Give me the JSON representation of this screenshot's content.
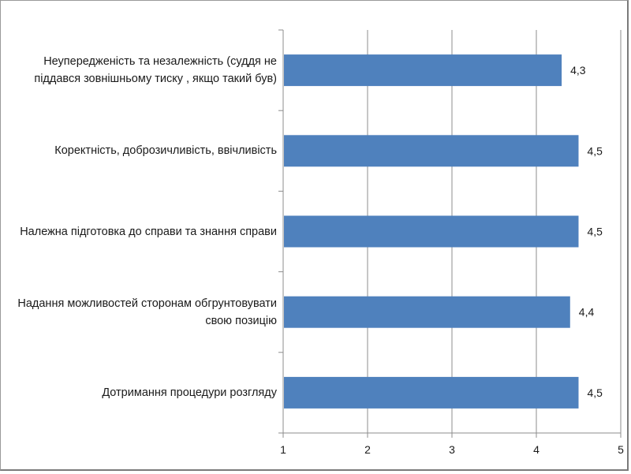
{
  "chart_data": {
    "type": "bar",
    "orientation": "horizontal",
    "categories": [
      "Неупередженість та незалежність (суддя не піддався зовнішньому тиску , якщо такий був)",
      "Коректність, доброзичливість, ввічливість",
      "Належна підготовка до справи та знання справи",
      "Надання можливостей сторонам обгрунтовувати свою позицію",
      "Дотримання процедури розгляду"
    ],
    "values": [
      4.3,
      4.5,
      4.5,
      4.4,
      4.5
    ],
    "data_labels": [
      "4,3",
      "4,5",
      "4,5",
      "4,4",
      "4,5"
    ],
    "xlim": [
      1,
      5
    ],
    "x_ticks": [
      "1",
      "2",
      "3",
      "4",
      "5"
    ],
    "bar_color": "#4f81bd",
    "grid": true,
    "title": "",
    "xlabel": "",
    "ylabel": ""
  }
}
